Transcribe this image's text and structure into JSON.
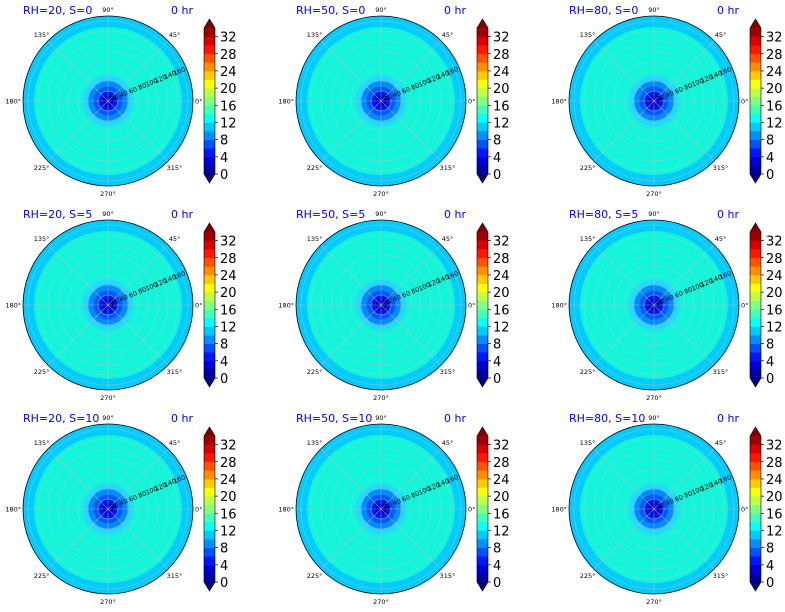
{
  "figure": {
    "colors": {
      "title": "#0000ff",
      "ring_outer": "#00ccff",
      "ring_main": "#11f5da",
      "grid": "#c0c0c0",
      "axes_edge": "#000000"
    },
    "center_rings": [
      {
        "r_frac": 0.3,
        "color": "#24d8ff"
      },
      {
        "r_frac": 0.24,
        "color": "#008bff"
      },
      {
        "r_frac": 0.17,
        "color": "#0059ff"
      },
      {
        "r_frac": 0.11,
        "color": "#0013f0"
      },
      {
        "r_frac": 0.06,
        "color": "#0000c8"
      }
    ]
  },
  "chart_data": [
    {
      "type": "polar-contour",
      "title_left": "RH=20, S=0",
      "title_right": "0 hr",
      "angle_labels": [
        "90°",
        "45°",
        "0°",
        "315°",
        "270°",
        "225°",
        "180°",
        "135°"
      ],
      "radial_ticks": [
        "20",
        "40",
        "60",
        "80",
        "100",
        "120",
        "140",
        "160"
      ],
      "colorbar_ticks": [
        "0",
        "4",
        "8",
        "12",
        "16",
        "20",
        "24",
        "28",
        "32"
      ],
      "vmin": 0,
      "vmax": 34,
      "extend": "both",
      "colormap": "jet"
    },
    {
      "type": "polar-contour",
      "title_left": "RH=50, S=0",
      "title_right": "0 hr",
      "angle_labels": [
        "90°",
        "45°",
        "0°",
        "315°",
        "270°",
        "225°",
        "180°",
        "135°"
      ],
      "radial_ticks": [
        "20",
        "40",
        "60",
        "80",
        "100",
        "120",
        "140",
        "160"
      ],
      "colorbar_ticks": [
        "0",
        "4",
        "8",
        "12",
        "16",
        "20",
        "24",
        "28",
        "32"
      ],
      "vmin": 0,
      "vmax": 34,
      "extend": "both",
      "colormap": "jet"
    },
    {
      "type": "polar-contour",
      "title_left": "RH=80, S=0",
      "title_right": "0 hr",
      "angle_labels": [
        "90°",
        "45°",
        "0°",
        "315°",
        "270°",
        "225°",
        "180°",
        "135°"
      ],
      "radial_ticks": [
        "20",
        "40",
        "60",
        "80",
        "100",
        "120",
        "140",
        "160"
      ],
      "colorbar_ticks": [
        "0",
        "4",
        "8",
        "12",
        "16",
        "20",
        "24",
        "28",
        "32"
      ],
      "vmin": 0,
      "vmax": 34,
      "extend": "both",
      "colormap": "jet"
    },
    {
      "type": "polar-contour",
      "title_left": "RH=20, S=5",
      "title_right": "0 hr",
      "angle_labels": [
        "90°",
        "45°",
        "0°",
        "315°",
        "270°",
        "225°",
        "180°",
        "135°"
      ],
      "radial_ticks": [
        "20",
        "40",
        "60",
        "80",
        "100",
        "120",
        "140",
        "160"
      ],
      "colorbar_ticks": [
        "0",
        "4",
        "8",
        "12",
        "16",
        "20",
        "24",
        "28",
        "32"
      ],
      "vmin": 0,
      "vmax": 34,
      "extend": "both",
      "colormap": "jet"
    },
    {
      "type": "polar-contour",
      "title_left": "RH=50, S=5",
      "title_right": "0 hr",
      "angle_labels": [
        "90°",
        "45°",
        "0°",
        "315°",
        "270°",
        "225°",
        "180°",
        "135°"
      ],
      "radial_ticks": [
        "20",
        "40",
        "60",
        "80",
        "100",
        "120",
        "140",
        "160"
      ],
      "colorbar_ticks": [
        "0",
        "4",
        "8",
        "12",
        "16",
        "20",
        "24",
        "28",
        "32"
      ],
      "vmin": 0,
      "vmax": 34,
      "extend": "both",
      "colormap": "jet"
    },
    {
      "type": "polar-contour",
      "title_left": "RH=80, S=5",
      "title_right": "0 hr",
      "angle_labels": [
        "90°",
        "45°",
        "0°",
        "315°",
        "270°",
        "225°",
        "180°",
        "135°"
      ],
      "radial_ticks": [
        "20",
        "40",
        "60",
        "80",
        "100",
        "120",
        "140",
        "160"
      ],
      "colorbar_ticks": [
        "0",
        "4",
        "8",
        "12",
        "16",
        "20",
        "24",
        "28",
        "32"
      ],
      "vmin": 0,
      "vmax": 34,
      "extend": "both",
      "colormap": "jet"
    },
    {
      "type": "polar-contour",
      "title_left": "RH=20, S=10",
      "title_right": "0 hr",
      "angle_labels": [
        "90°",
        "45°",
        "0°",
        "315°",
        "270°",
        "225°",
        "180°",
        "135°"
      ],
      "radial_ticks": [
        "20",
        "40",
        "60",
        "80",
        "100",
        "120",
        "140",
        "160"
      ],
      "colorbar_ticks": [
        "0",
        "4",
        "8",
        "12",
        "16",
        "20",
        "24",
        "28",
        "32"
      ],
      "vmin": 0,
      "vmax": 34,
      "extend": "both",
      "colormap": "jet"
    },
    {
      "type": "polar-contour",
      "title_left": "RH=50, S=10",
      "title_right": "0 hr",
      "angle_labels": [
        "90°",
        "45°",
        "0°",
        "315°",
        "270°",
        "225°",
        "180°",
        "135°"
      ],
      "radial_ticks": [
        "20",
        "40",
        "60",
        "80",
        "100",
        "120",
        "140",
        "160"
      ],
      "colorbar_ticks": [
        "0",
        "4",
        "8",
        "12",
        "16",
        "20",
        "24",
        "28",
        "32"
      ],
      "vmin": 0,
      "vmax": 34,
      "extend": "both",
      "colormap": "jet"
    },
    {
      "type": "polar-contour",
      "title_left": "RH=80, S=10",
      "title_right": "0 hr",
      "angle_labels": [
        "90°",
        "45°",
        "0°",
        "315°",
        "270°",
        "225°",
        "180°",
        "135°"
      ],
      "radial_ticks": [
        "20",
        "40",
        "60",
        "80",
        "100",
        "120",
        "140",
        "160"
      ],
      "colorbar_ticks": [
        "0",
        "4",
        "8",
        "12",
        "16",
        "20",
        "24",
        "28",
        "32"
      ],
      "vmin": 0,
      "vmax": 34,
      "extend": "both",
      "colormap": "jet"
    }
  ]
}
